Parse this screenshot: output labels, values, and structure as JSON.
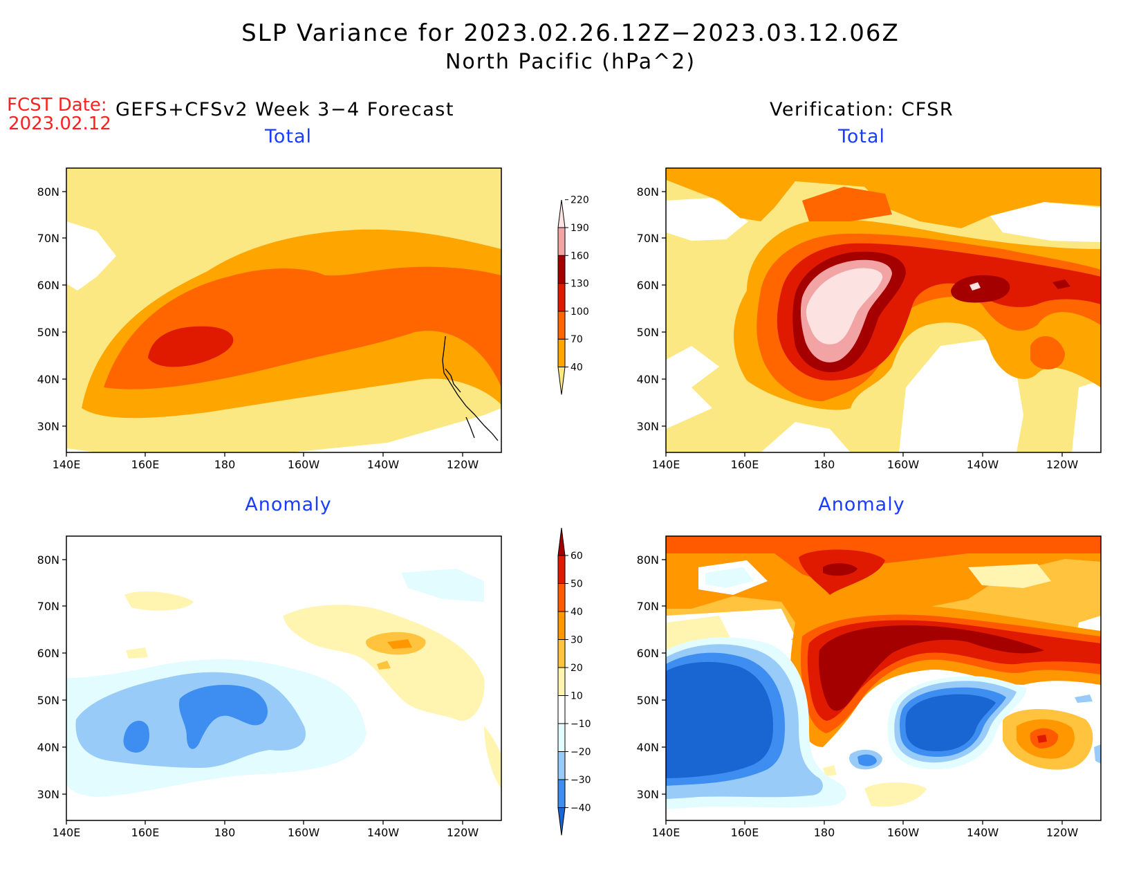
{
  "title": {
    "line1": "SLP Variance for 2023.02.26.12Z−2023.03.12.06Z",
    "line2": "North Pacific (hPa^2)"
  },
  "forecast_date": {
    "label": "FCST Date:",
    "value": "2023.02.12"
  },
  "left_header": "GEFS+CFSv2 Week 3−4 Forecast",
  "right_header": "Verification: CFSR",
  "panels": {
    "forecast_total": {
      "subtitle": "Total"
    },
    "verification_total": {
      "subtitle": "Total"
    },
    "forecast_anomaly": {
      "subtitle": "Anomaly"
    },
    "verification_anomaly": {
      "subtitle": "Anomaly"
    }
  },
  "axes": {
    "lat_labels": [
      "80N",
      "70N",
      "60N",
      "50N",
      "40N",
      "30N"
    ],
    "lon_labels": [
      "140E",
      "160E",
      "180",
      "160W",
      "140W",
      "120W"
    ]
  },
  "total_colorbar": {
    "levels": [
      "40",
      "70",
      "100",
      "130",
      "160",
      "190",
      "220"
    ],
    "colors": [
      "#fce883",
      "#ffa500",
      "#ff6600",
      "#e01a00",
      "#a50000",
      "#f2a3a3",
      "#fde2e2"
    ]
  },
  "anomaly_colorbar": {
    "levels": [
      "−40",
      "−30",
      "−20",
      "−10",
      "10",
      "20",
      "30",
      "40",
      "50",
      "60"
    ],
    "colors": [
      "#1966d2",
      "#3d8ef0",
      "#98cbf8",
      "#e2fcff",
      "#ffffff",
      "#fff5b0",
      "#ffc33d",
      "#ff9800",
      "#ff5a00",
      "#e01a00",
      "#a50000"
    ]
  },
  "colors": {
    "forecast_date": "#ff2020",
    "subtitle": "#1a3cff"
  }
}
